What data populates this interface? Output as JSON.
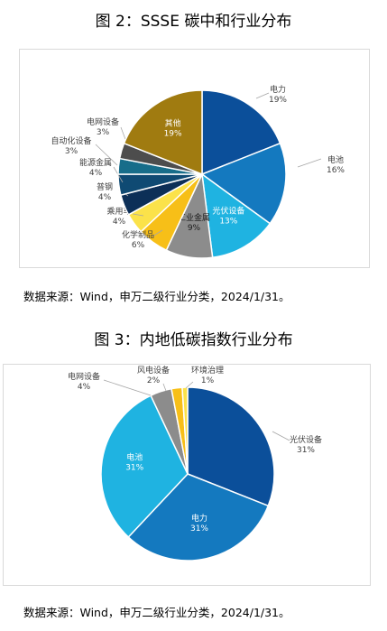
{
  "figure1": {
    "title": "图 2：SSSE 碳中和行业分布",
    "source": "数据来源：Wind，申万二级行业分类，2024/1/31。"
  },
  "figure2": {
    "title": "图 3：内地低碳指数行业分布",
    "source": "数据来源：Wind，申万二级行业分类，2024/1/31。"
  },
  "chart_data": [
    {
      "type": "pie",
      "title": "图 2：SSSE 碳中和行业分布",
      "slices": [
        {
          "label": "电力",
          "value": 19,
          "pct_text": "19%",
          "color": "#0b4f9a"
        },
        {
          "label": "电池",
          "value": 16,
          "pct_text": "16%",
          "color": "#1479bf"
        },
        {
          "label": "光伏设备",
          "value": 13,
          "pct_text": "13%",
          "color": "#1fb3e1"
        },
        {
          "label": "工业金属",
          "value": 9,
          "pct_text": "9%",
          "color": "#8c8c8c"
        },
        {
          "label": "化学制品",
          "value": 6,
          "pct_text": "6%",
          "color": "#f7bf18"
        },
        {
          "label": "乘用车",
          "value": 4,
          "pct_text": "4%",
          "color": "#fbe24a"
        },
        {
          "label": "普钢",
          "value": 4,
          "pct_text": "4%",
          "color": "#0c2f57"
        },
        {
          "label": "能源金属",
          "value": 4,
          "pct_text": "4%",
          "color": "#0f4a73"
        },
        {
          "label": "自动化设备",
          "value": 3,
          "pct_text": "3%",
          "color": "#176d8a"
        },
        {
          "label": "电网设备",
          "value": 3,
          "pct_text": "3%",
          "color": "#4d4d4d"
        },
        {
          "label": "其他",
          "value": 19,
          "pct_text": "19%",
          "color": "#a07b10"
        }
      ]
    },
    {
      "type": "pie",
      "title": "图 3：内地低碳指数行业分布",
      "slices": [
        {
          "label": "光伏设备",
          "value": 31,
          "pct_text": "31%",
          "color": "#0b4f9a"
        },
        {
          "label": "电力",
          "value": 31,
          "pct_text": "31%",
          "color": "#1479bf"
        },
        {
          "label": "电池",
          "value": 31,
          "pct_text": "31%",
          "color": "#1fb3e1"
        },
        {
          "label": "电网设备",
          "value": 4,
          "pct_text": "4%",
          "color": "#8c8c8c"
        },
        {
          "label": "风电设备",
          "value": 2,
          "pct_text": "2%",
          "color": "#f7bf18"
        },
        {
          "label": "环境治理",
          "value": 1,
          "pct_text": "1%",
          "color": "#fbe24a"
        }
      ]
    }
  ]
}
